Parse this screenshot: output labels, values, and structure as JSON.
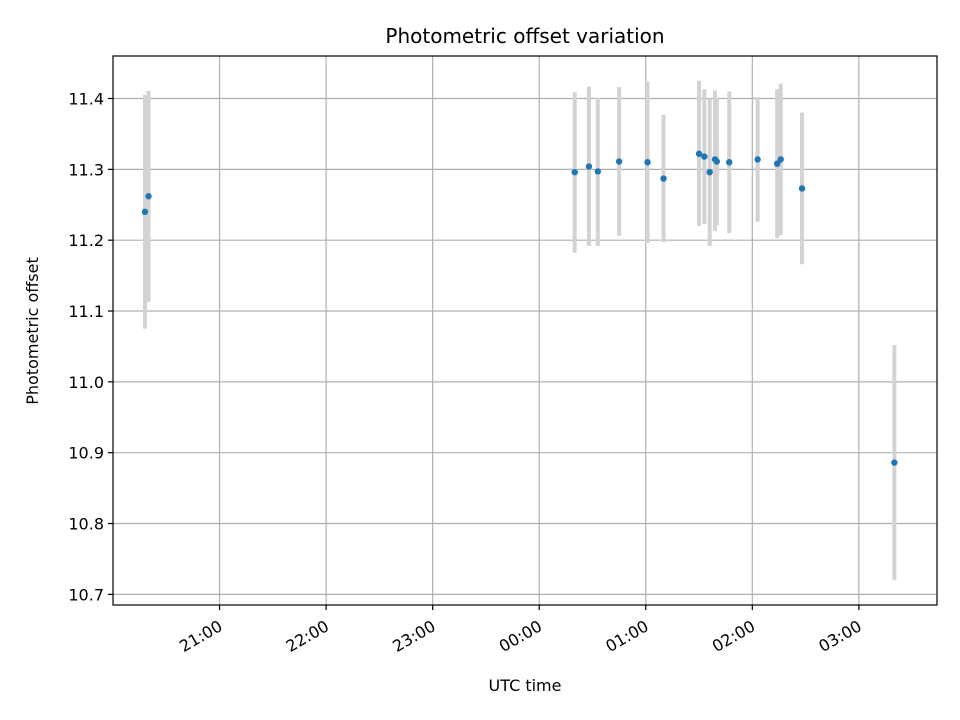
{
  "chart_data": {
    "type": "scatter",
    "title": "Photometric offset variation",
    "xlabel": "UTC time",
    "ylabel": "Photometric offset",
    "grid": true,
    "x_unit": "UTC time (HH:MM)",
    "xlim": [
      "20:00",
      "03:44"
    ],
    "ylim": [
      10.685,
      11.46
    ],
    "xtick_labels": [
      "21:00",
      "22:00",
      "23:00",
      "00:00",
      "01:00",
      "02:00",
      "03:00"
    ],
    "ytick_labels": [
      "10.7",
      "10.8",
      "10.9",
      "11.0",
      "11.1",
      "11.2",
      "11.3",
      "11.4"
    ],
    "ytick_values": [
      10.7,
      10.8,
      10.9,
      11.0,
      11.1,
      11.2,
      11.3,
      11.4
    ],
    "colors": {
      "point": "#1f77b4",
      "errorbar": "#d3d3d3",
      "grid": "#b0b0b0"
    },
    "points": [
      {
        "x": "20:18",
        "y": 11.24,
        "lo": 11.075,
        "hi": 11.405
      },
      {
        "x": "20:20",
        "y": 11.262,
        "lo": 11.113,
        "hi": 11.411
      },
      {
        "x": "00:20",
        "y": 11.296,
        "lo": 11.182,
        "hi": 11.409
      },
      {
        "x": "00:28",
        "y": 11.304,
        "lo": 11.192,
        "hi": 11.417
      },
      {
        "x": "00:33",
        "y": 11.297,
        "lo": 11.192,
        "hi": 11.401
      },
      {
        "x": "00:45",
        "y": 11.311,
        "lo": 11.206,
        "hi": 11.416
      },
      {
        "x": "01:01",
        "y": 11.31,
        "lo": 11.196,
        "hi": 11.424
      },
      {
        "x": "01:10",
        "y": 11.287,
        "lo": 11.197,
        "hi": 11.377
      },
      {
        "x": "01:30",
        "y": 11.322,
        "lo": 11.22,
        "hi": 11.425
      },
      {
        "x": "01:33",
        "y": 11.318,
        "lo": 11.223,
        "hi": 11.413
      },
      {
        "x": "01:36",
        "y": 11.296,
        "lo": 11.192,
        "hi": 11.4
      },
      {
        "x": "01:39",
        "y": 11.314,
        "lo": 11.213,
        "hi": 11.411
      },
      {
        "x": "01:40",
        "y": 11.311,
        "lo": 11.221,
        "hi": 11.401
      },
      {
        "x": "01:47",
        "y": 11.31,
        "lo": 11.21,
        "hi": 11.41
      },
      {
        "x": "02:03",
        "y": 11.314,
        "lo": 11.226,
        "hi": 11.402
      },
      {
        "x": "02:14",
        "y": 11.308,
        "lo": 11.203,
        "hi": 11.413
      },
      {
        "x": "02:16",
        "y": 11.314,
        "lo": 11.207,
        "hi": 11.421
      },
      {
        "x": "02:28",
        "y": 11.273,
        "lo": 11.166,
        "hi": 11.38
      },
      {
        "x": "03:20",
        "y": 10.886,
        "lo": 10.72,
        "hi": 11.052
      }
    ]
  }
}
